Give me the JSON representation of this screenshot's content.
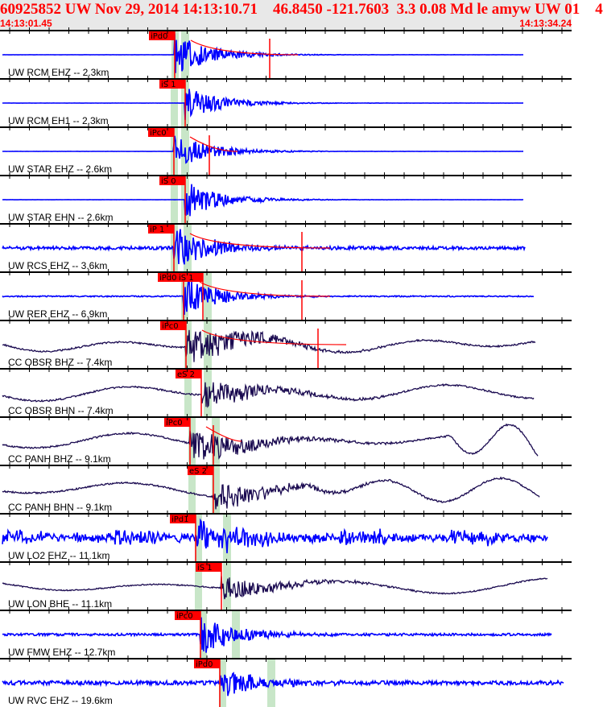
{
  "header": {
    "title": "60925852 UW Nov 29, 2014 14:13:10.71    46.8450 -121.7603  3.3 0.08 Md le amyw UW 01    4",
    "start_time": "14:13:01.45",
    "end_time": "14:13:34.24"
  },
  "colors": {
    "header_text": "#ff0000",
    "pick": "#ff0000",
    "window": "#c8e6c8",
    "short_period": "#0000ff",
    "broadband": "#1a0a50"
  },
  "chart_data": {
    "type": "line",
    "title": "60925852 UW Nov 29, 2014 14:13:10.71    46.8450 -121.7603  3.3 0.08 Md le amyw UW 01    4",
    "xlim": [
      "14:13:01.45",
      "14:13:34.24"
    ],
    "series": [
      {
        "name": "UW RCM EHZ -- 2.3km",
        "picks": [
          "iPd0"
        ],
        "type": "short_period"
      },
      {
        "name": "UW RCM EH1 -- 2.3km",
        "picks": [
          "iS 1"
        ],
        "type": "short_period"
      },
      {
        "name": "UW STAR EHZ -- 2.6km",
        "picks": [
          "iPc0"
        ],
        "type": "short_period"
      },
      {
        "name": "UW STAR EHN -- 2.6km",
        "picks": [
          "iS 0"
        ],
        "type": "short_period"
      },
      {
        "name": "UW RCS EHZ -- 3.6km",
        "picks": [
          "iP 1"
        ],
        "type": "short_period"
      },
      {
        "name": "UW RER EHZ -- 6.9km",
        "picks": [
          "iPd0",
          "iS 1"
        ],
        "type": "short_period"
      },
      {
        "name": "CC OBSR BHZ -- 7.4km",
        "picks": [
          "iPc0"
        ],
        "type": "broadband"
      },
      {
        "name": "CC OBSR BHN -- 7.4km",
        "picks": [
          "eS 2"
        ],
        "type": "broadband"
      },
      {
        "name": "CC PANH BHZ -- 9.1km",
        "picks": [
          "iPc0"
        ],
        "type": "broadband"
      },
      {
        "name": "CC PANH BHN -- 9.1km",
        "picks": [
          "eS 2"
        ],
        "type": "broadband"
      },
      {
        "name": "UW LO2 EHZ -- 11.1km",
        "picks": [
          "iPd1"
        ],
        "type": "short_period"
      },
      {
        "name": "UW LON BHE -- 11.1km",
        "picks": [
          "iS 1"
        ],
        "type": "broadband"
      },
      {
        "name": "UW FMW EHZ -- 12.7km",
        "picks": [
          "iPc0"
        ],
        "type": "short_period"
      },
      {
        "name": "UW RVC EHZ -- 19.6km",
        "picks": [
          "iPd0"
        ],
        "type": "short_period"
      }
    ]
  }
}
